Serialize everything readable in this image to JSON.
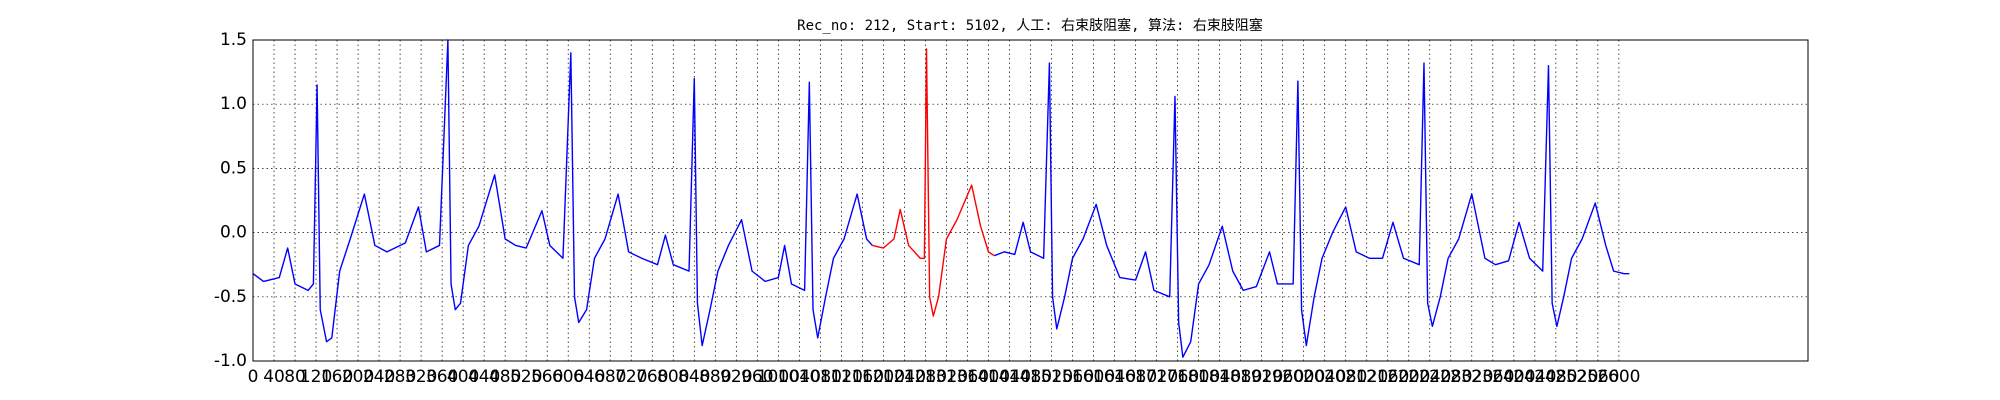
{
  "chart_data": {
    "type": "line",
    "title": "Rec_no: 212, Start: 5102, 人工: 右束肢阻塞, 算法: 右束肢阻塞",
    "series": [
      {
        "color": "#0000ff",
        "x": [
          0,
          20,
          50,
          66,
          80,
          105,
          115,
          122,
          128,
          140,
          150,
          165,
          185,
          212,
          232,
          255,
          290,
          315,
          330,
          355,
          371,
          377,
          385,
          395,
          410,
          430,
          460,
          480,
          500,
          520,
          550,
          565,
          590,
          605,
          612,
          620,
          635,
          650,
          670,
          695,
          715,
          740,
          770,
          785,
          800,
          830,
          840,
          846,
          855,
          870,
          885,
          905,
          930,
          950,
          975,
          1000,
          1012,
          1025,
          1050,
          1059,
          1066,
          1075,
          1090,
          1105,
          1125,
          1150,
          1168,
          1179,
          null,
          1411,
          1430,
          1450,
          1466,
          1480,
          1505,
          1516,
          1522,
          1530,
          1545,
          1560,
          1580,
          1605,
          1625,
          1650,
          1680,
          1699,
          1715,
          1745,
          1755,
          1762,
          1770,
          1785,
          1800,
          1820,
          1845,
          1865,
          1885,
          1910,
          1935,
          1950,
          1980,
          1989,
          1996,
          2005,
          2020,
          2035,
          2055,
          2080,
          2100,
          2125,
          2150,
          2170,
          2190,
          2220,
          2229,
          2236,
          2245,
          2260,
          2275,
          2295,
          2320,
          2345,
          2365,
          2390,
          2410,
          2430,
          2455,
          2466,
          2473,
          2482,
          2495,
          2510,
          2530,
          2555,
          2575,
          2590,
          2610,
          2620
        ],
        "values": [
          -0.32,
          -0.38,
          -0.35,
          -0.12,
          -0.4,
          -0.45,
          -0.4,
          1.15,
          -0.6,
          -0.85,
          -0.82,
          -0.3,
          -0.05,
          0.3,
          -0.1,
          -0.15,
          -0.08,
          0.2,
          -0.15,
          -0.1,
          1.5,
          -0.4,
          -0.6,
          -0.55,
          -0.1,
          0.05,
          0.45,
          -0.05,
          -0.1,
          -0.12,
          0.17,
          -0.1,
          -0.2,
          1.4,
          -0.5,
          -0.7,
          -0.6,
          -0.2,
          -0.05,
          0.3,
          -0.15,
          -0.2,
          -0.25,
          -0.02,
          -0.25,
          -0.3,
          1.2,
          -0.55,
          -0.88,
          -0.6,
          -0.3,
          -0.1,
          0.1,
          -0.3,
          -0.38,
          -0.35,
          -0.1,
          -0.4,
          -0.45,
          1.17,
          -0.6,
          -0.82,
          -0.5,
          -0.2,
          -0.05,
          0.3,
          -0.05,
          -0.1,
          null,
          -0.18,
          -0.15,
          -0.17,
          0.08,
          -0.15,
          -0.2,
          1.32,
          -0.5,
          -0.75,
          -0.5,
          -0.2,
          -0.05,
          0.22,
          -0.1,
          -0.35,
          -0.37,
          -0.15,
          -0.45,
          -0.5,
          1.06,
          -0.7,
          -0.97,
          -0.85,
          -0.4,
          -0.25,
          0.05,
          -0.3,
          -0.45,
          -0.42,
          -0.15,
          -0.4,
          -0.4,
          1.18,
          -0.6,
          -0.88,
          -0.5,
          -0.2,
          0.0,
          0.2,
          -0.15,
          -0.2,
          -0.2,
          0.08,
          -0.2,
          -0.25,
          1.32,
          -0.55,
          -0.73,
          -0.5,
          -0.2,
          -0.05,
          0.3,
          -0.2,
          -0.25,
          -0.22,
          0.08,
          -0.2,
          -0.3,
          1.3,
          -0.55,
          -0.73,
          -0.5,
          -0.2,
          -0.05,
          0.23,
          -0.1,
          -0.3,
          -0.32,
          -0.32
        ]
      },
      {
        "color": "#ff0000",
        "x": [
          1179,
          1200,
          1220,
          1232,
          1248,
          1270,
          1278,
          1282,
          1288,
          1295,
          1305,
          1320,
          1340,
          1368,
          1385,
          1400,
          1411
        ],
        "values": [
          -0.1,
          -0.12,
          -0.05,
          0.18,
          -0.1,
          -0.2,
          -0.2,
          1.43,
          -0.5,
          -0.65,
          -0.5,
          -0.05,
          0.1,
          0.37,
          0.05,
          -0.15,
          -0.18
        ]
      }
    ],
    "xlim": [
      0,
      2960
    ],
    "ylim": [
      -1.0,
      1.5
    ],
    "xticks": [
      0,
      40,
      80,
      120,
      160,
      200,
      240,
      280,
      320,
      360,
      400,
      440,
      480,
      520,
      560,
      600,
      640,
      680,
      720,
      760,
      800,
      840,
      880,
      920,
      960,
      1000,
      1040,
      1080,
      1120,
      1160,
      1200,
      1240,
      1280,
      1320,
      1360,
      1400,
      1440,
      1480,
      1520,
      1560,
      1600,
      1640,
      1680,
      1720,
      1760,
      1800,
      1840,
      1880,
      1920,
      1960,
      2000,
      2040,
      2080,
      2120,
      2160,
      2200,
      2240,
      2280,
      2320,
      2360,
      2400,
      2440,
      2480,
      2520,
      2560,
      2600
    ],
    "yticks": [
      {
        "value": -1.0,
        "label": "-1.0"
      },
      -0.5,
      {
        "value": 0.0,
        "label": "0.0"
      },
      0.5,
      {
        "value": 1.0,
        "label": "1.0"
      },
      1.5
    ],
    "grid": true
  }
}
